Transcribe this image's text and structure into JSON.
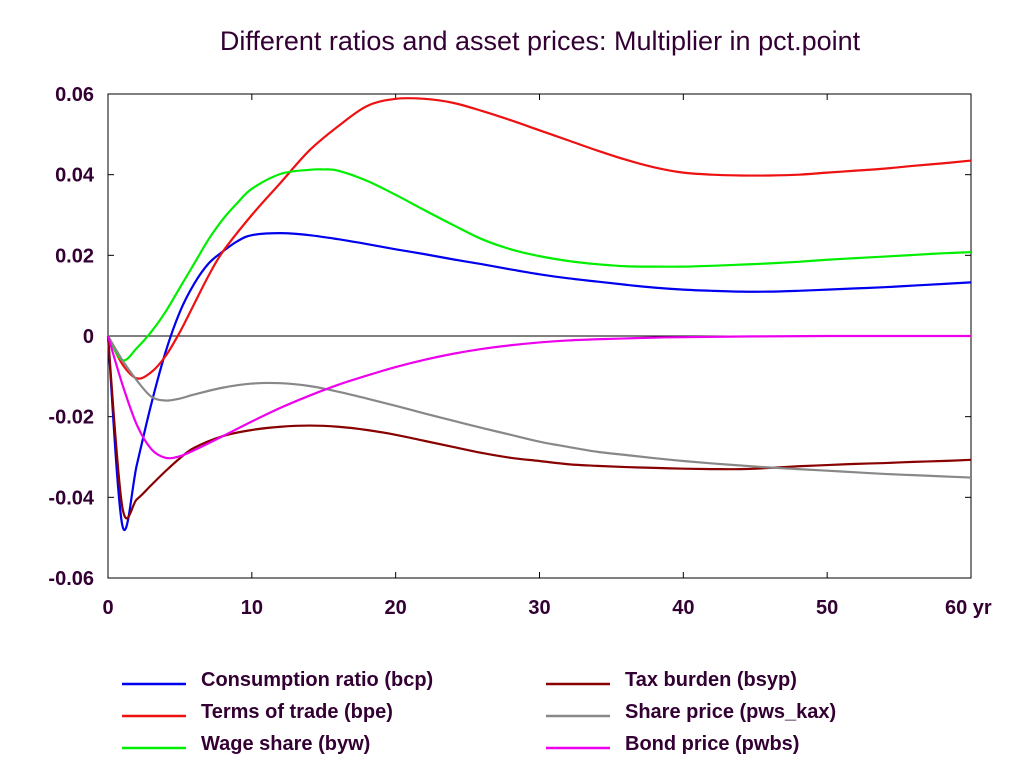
{
  "chart_data": {
    "type": "line",
    "title": "Different ratios and asset prices: Multiplier in pct.point",
    "xlim": [
      0,
      60
    ],
    "ylim": [
      -0.06,
      0.06
    ],
    "x_ticks": [
      0,
      10,
      20,
      30,
      40,
      50,
      60
    ],
    "x_tick_labels": [
      "0",
      "10",
      "20",
      "30",
      "40",
      "50",
      "60 yr"
    ],
    "y_ticks": [
      -0.06,
      -0.04,
      -0.02,
      0,
      0.02,
      0.04,
      0.06
    ],
    "y_tick_labels": [
      "-0.06",
      "-0.04",
      "-0.02",
      "0",
      "0.02",
      "0.04",
      "0.06"
    ],
    "grid": false,
    "zero_line": true,
    "legend_position": "bottom",
    "series": [
      {
        "name": "Consumption ratio (bcp)",
        "color": "#0000ee",
        "points": [
          [
            0,
            0
          ],
          [
            1,
            -0.047
          ],
          [
            2,
            -0.032
          ],
          [
            3,
            -0.017
          ],
          [
            4,
            -0.004
          ],
          [
            5,
            0.006
          ],
          [
            6,
            0.013
          ],
          [
            7,
            0.018
          ],
          [
            8,
            0.021
          ],
          [
            9,
            0.0235
          ],
          [
            10,
            0.025
          ],
          [
            12,
            0.0255
          ],
          [
            14,
            0.025
          ],
          [
            16,
            0.024
          ],
          [
            18,
            0.0228
          ],
          [
            20,
            0.0215
          ],
          [
            22,
            0.0203
          ],
          [
            24,
            0.019
          ],
          [
            26,
            0.0178
          ],
          [
            28,
            0.0165
          ],
          [
            30,
            0.0153
          ],
          [
            32,
            0.0143
          ],
          [
            34,
            0.0135
          ],
          [
            36,
            0.0127
          ],
          [
            38,
            0.012
          ],
          [
            40,
            0.0115
          ],
          [
            42,
            0.0112
          ],
          [
            44,
            0.011
          ],
          [
            46,
            0.011
          ],
          [
            48,
            0.0112
          ],
          [
            50,
            0.0115
          ],
          [
            52,
            0.0118
          ],
          [
            54,
            0.0121
          ],
          [
            56,
            0.0125
          ],
          [
            58,
            0.0129
          ],
          [
            60,
            0.0133
          ]
        ]
      },
      {
        "name": "Terms of trade (bpe)",
        "color": "#ee1111",
        "points": [
          [
            0,
            0
          ],
          [
            1,
            -0.007
          ],
          [
            2,
            -0.0105
          ],
          [
            3,
            -0.009
          ],
          [
            4,
            -0.005
          ],
          [
            5,
            0.001
          ],
          [
            6,
            0.008
          ],
          [
            7,
            0.015
          ],
          [
            8,
            0.021
          ],
          [
            10,
            0.03
          ],
          [
            12,
            0.038
          ],
          [
            14,
            0.046
          ],
          [
            16,
            0.052
          ],
          [
            18,
            0.057
          ],
          [
            20,
            0.0588
          ],
          [
            22,
            0.0588
          ],
          [
            24,
            0.0578
          ],
          [
            26,
            0.0558
          ],
          [
            28,
            0.0535
          ],
          [
            30,
            0.051
          ],
          [
            32,
            0.0485
          ],
          [
            34,
            0.046
          ],
          [
            36,
            0.0437
          ],
          [
            38,
            0.0418
          ],
          [
            40,
            0.0405
          ],
          [
            42,
            0.04
          ],
          [
            44,
            0.0398
          ],
          [
            46,
            0.0398
          ],
          [
            48,
            0.04
          ],
          [
            50,
            0.0405
          ],
          [
            52,
            0.041
          ],
          [
            54,
            0.0415
          ],
          [
            56,
            0.0422
          ],
          [
            58,
            0.0428
          ],
          [
            60,
            0.0435
          ]
        ]
      },
      {
        "name": "Wage share (byw)",
        "color": "#00ee00",
        "points": [
          [
            0,
            0
          ],
          [
            1,
            -0.006
          ],
          [
            2,
            -0.003
          ],
          [
            3,
            0.001
          ],
          [
            4,
            0.006
          ],
          [
            5,
            0.012
          ],
          [
            6,
            0.018
          ],
          [
            7,
            0.024
          ],
          [
            8,
            0.029
          ],
          [
            9,
            0.033
          ],
          [
            10,
            0.0365
          ],
          [
            12,
            0.0402
          ],
          [
            14,
            0.0412
          ],
          [
            15,
            0.0413
          ],
          [
            16,
            0.041
          ],
          [
            18,
            0.0385
          ],
          [
            20,
            0.035
          ],
          [
            22,
            0.0312
          ],
          [
            24,
            0.0275
          ],
          [
            26,
            0.024
          ],
          [
            28,
            0.0215
          ],
          [
            30,
            0.0198
          ],
          [
            32,
            0.0186
          ],
          [
            34,
            0.0178
          ],
          [
            36,
            0.0173
          ],
          [
            38,
            0.0172
          ],
          [
            40,
            0.0172
          ],
          [
            42,
            0.0174
          ],
          [
            44,
            0.0177
          ],
          [
            46,
            0.018
          ],
          [
            48,
            0.0184
          ],
          [
            50,
            0.0189
          ],
          [
            52,
            0.0193
          ],
          [
            54,
            0.0197
          ],
          [
            56,
            0.0201
          ],
          [
            58,
            0.0205
          ],
          [
            60,
            0.0208
          ]
        ]
      },
      {
        "name": "Tax burden (bsyp)",
        "color": "#880000",
        "points": [
          [
            0,
            0
          ],
          [
            1,
            -0.0425
          ],
          [
            2,
            -0.0405
          ],
          [
            3,
            -0.037
          ],
          [
            4,
            -0.0335
          ],
          [
            5,
            -0.0303
          ],
          [
            6,
            -0.0277
          ],
          [
            8,
            -0.0248
          ],
          [
            10,
            -0.0233
          ],
          [
            12,
            -0.0225
          ],
          [
            14,
            -0.0222
          ],
          [
            16,
            -0.0225
          ],
          [
            18,
            -0.0233
          ],
          [
            20,
            -0.0245
          ],
          [
            22,
            -0.026
          ],
          [
            24,
            -0.0275
          ],
          [
            26,
            -0.029
          ],
          [
            28,
            -0.0302
          ],
          [
            30,
            -0.031
          ],
          [
            32,
            -0.0318
          ],
          [
            34,
            -0.0322
          ],
          [
            36,
            -0.0325
          ],
          [
            38,
            -0.0327
          ],
          [
            40,
            -0.0329
          ],
          [
            42,
            -0.033
          ],
          [
            44,
            -0.033
          ],
          [
            46,
            -0.0327
          ],
          [
            48,
            -0.0323
          ],
          [
            50,
            -0.032
          ],
          [
            52,
            -0.0317
          ],
          [
            54,
            -0.0315
          ],
          [
            56,
            -0.0312
          ],
          [
            58,
            -0.031
          ],
          [
            60,
            -0.0307
          ]
        ]
      },
      {
        "name": "Share price (pws_kax)",
        "color": "#888888",
        "points": [
          [
            0,
            0
          ],
          [
            1,
            -0.006
          ],
          [
            2,
            -0.011
          ],
          [
            3,
            -0.015
          ],
          [
            4,
            -0.016
          ],
          [
            5,
            -0.0155
          ],
          [
            6,
            -0.0145
          ],
          [
            8,
            -0.0128
          ],
          [
            10,
            -0.0118
          ],
          [
            12,
            -0.0117
          ],
          [
            14,
            -0.0124
          ],
          [
            16,
            -0.0138
          ],
          [
            18,
            -0.0155
          ],
          [
            20,
            -0.0173
          ],
          [
            22,
            -0.0192
          ],
          [
            24,
            -0.021
          ],
          [
            26,
            -0.0228
          ],
          [
            28,
            -0.0245
          ],
          [
            30,
            -0.0262
          ],
          [
            32,
            -0.0275
          ],
          [
            34,
            -0.0287
          ],
          [
            36,
            -0.0295
          ],
          [
            38,
            -0.0303
          ],
          [
            40,
            -0.031
          ],
          [
            42,
            -0.0316
          ],
          [
            44,
            -0.0321
          ],
          [
            46,
            -0.0326
          ],
          [
            48,
            -0.033
          ],
          [
            50,
            -0.0334
          ],
          [
            52,
            -0.0338
          ],
          [
            54,
            -0.0342
          ],
          [
            56,
            -0.0345
          ],
          [
            58,
            -0.0348
          ],
          [
            60,
            -0.0351
          ]
        ]
      },
      {
        "name": "Bond price (pwbs)",
        "color": "#ee00ee",
        "points": [
          [
            0,
            0
          ],
          [
            1,
            -0.012
          ],
          [
            2,
            -0.022
          ],
          [
            3,
            -0.028
          ],
          [
            4,
            -0.0302
          ],
          [
            5,
            -0.0298
          ],
          [
            6,
            -0.0283
          ],
          [
            8,
            -0.0248
          ],
          [
            10,
            -0.0212
          ],
          [
            12,
            -0.0178
          ],
          [
            14,
            -0.0148
          ],
          [
            16,
            -0.0121
          ],
          [
            18,
            -0.0098
          ],
          [
            20,
            -0.0077
          ],
          [
            22,
            -0.0059
          ],
          [
            24,
            -0.0044
          ],
          [
            26,
            -0.0032
          ],
          [
            28,
            -0.0023
          ],
          [
            30,
            -0.0016
          ],
          [
            32,
            -0.0011
          ],
          [
            34,
            -0.0008
          ],
          [
            36,
            -0.0006
          ],
          [
            38,
            -0.0004
          ],
          [
            40,
            -0.0003
          ],
          [
            45,
            -0.0001
          ],
          [
            50,
            0
          ],
          [
            55,
            0
          ],
          [
            60,
            0
          ]
        ]
      }
    ]
  }
}
